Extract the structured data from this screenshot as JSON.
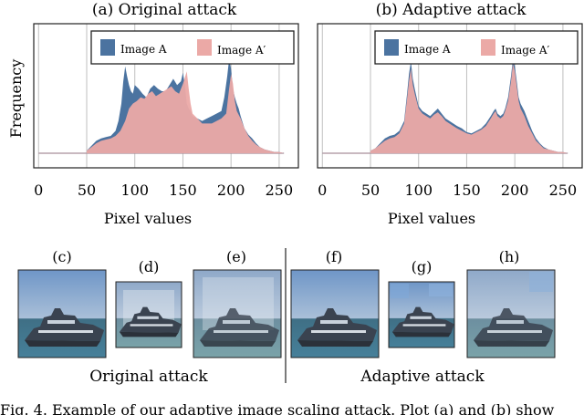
{
  "figure": {
    "caption_fragment": "Fig. 4.   Example of our adaptive image scaling attack. Plot (a) and (b) show",
    "ylabel": "Frequency",
    "xlabel": "Pixel values",
    "legend": {
      "image_a": "Image A",
      "image_a_prime": "Image A′"
    },
    "colors": {
      "image_a": "#4b73a0",
      "image_a_prime": "#eba9a6",
      "grid": "#bfbfbf"
    },
    "thumbnails": {
      "c": "(c)",
      "d": "(d)",
      "e": "(e)",
      "f": "(f)",
      "g": "(g)",
      "h": "(h)"
    },
    "group_labels": {
      "original": "Original attack",
      "adaptive": "Adaptive attack"
    }
  },
  "chart_data": [
    {
      "type": "area",
      "title": "(a) Original attack",
      "xlabel": "Pixel values",
      "ylabel": "Frequency",
      "xlim": [
        -5,
        270
      ],
      "xticks": [
        0,
        50,
        100,
        150,
        200,
        250
      ],
      "ylim": [
        0,
        1
      ],
      "grid": true,
      "legend_position": "top",
      "series": [
        {
          "name": "Image A",
          "x": [
            50,
            55,
            60,
            65,
            70,
            75,
            80,
            83,
            86,
            88,
            90,
            92,
            94,
            96,
            98,
            100,
            104,
            108,
            112,
            116,
            120,
            124,
            128,
            132,
            136,
            140,
            144,
            148,
            150,
            152,
            154,
            156,
            158,
            160,
            165,
            170,
            175,
            180,
            185,
            190,
            193,
            196,
            198,
            200,
            202,
            204,
            206,
            208,
            210,
            214,
            218,
            222,
            226,
            230,
            235,
            240,
            245,
            250,
            255
          ],
          "y": [
            0.02,
            0.06,
            0.1,
            0.12,
            0.13,
            0.14,
            0.18,
            0.26,
            0.4,
            0.58,
            0.7,
            0.62,
            0.55,
            0.5,
            0.48,
            0.55,
            0.52,
            0.48,
            0.45,
            0.52,
            0.55,
            0.52,
            0.5,
            0.5,
            0.55,
            0.6,
            0.55,
            0.58,
            0.65,
            0.55,
            0.4,
            0.36,
            0.34,
            0.3,
            0.28,
            0.26,
            0.28,
            0.3,
            0.32,
            0.34,
            0.45,
            0.62,
            0.76,
            0.68,
            0.52,
            0.45,
            0.4,
            0.36,
            0.3,
            0.2,
            0.15,
            0.12,
            0.08,
            0.05,
            0.03,
            0.02,
            0.01,
            0.01,
            0.0
          ]
        },
        {
          "name": "Image A′",
          "x": [
            50,
            55,
            60,
            65,
            70,
            75,
            80,
            85,
            90,
            94,
            98,
            102,
            106,
            110,
            114,
            118,
            122,
            126,
            130,
            134,
            138,
            142,
            146,
            150,
            154,
            156,
            158,
            160,
            165,
            170,
            175,
            180,
            185,
            190,
            195,
            198,
            200,
            202,
            204,
            206,
            210,
            214,
            218,
            222,
            226,
            230,
            235,
            240,
            245,
            250,
            255
          ],
          "y": [
            0.02,
            0.05,
            0.08,
            0.1,
            0.11,
            0.12,
            0.14,
            0.18,
            0.26,
            0.36,
            0.4,
            0.42,
            0.45,
            0.44,
            0.48,
            0.5,
            0.46,
            0.48,
            0.5,
            0.52,
            0.54,
            0.5,
            0.48,
            0.56,
            0.66,
            0.52,
            0.4,
            0.32,
            0.28,
            0.24,
            0.24,
            0.24,
            0.26,
            0.28,
            0.32,
            0.52,
            0.64,
            0.56,
            0.42,
            0.34,
            0.28,
            0.2,
            0.14,
            0.1,
            0.07,
            0.05,
            0.03,
            0.02,
            0.01,
            0.01,
            0.0
          ]
        }
      ]
    },
    {
      "type": "area",
      "title": "(b) Adaptive attack",
      "xlabel": "Pixel values",
      "ylabel": "",
      "xlim": [
        -5,
        270
      ],
      "xticks": [
        0,
        50,
        100,
        150,
        200,
        250
      ],
      "ylim": [
        0,
        1
      ],
      "grid": true,
      "legend_position": "top",
      "series": [
        {
          "name": "Image A",
          "x": [
            50,
            55,
            60,
            65,
            70,
            75,
            80,
            85,
            88,
            90,
            92,
            94,
            96,
            98,
            100,
            104,
            108,
            112,
            116,
            120,
            124,
            128,
            132,
            136,
            140,
            145,
            150,
            155,
            160,
            165,
            170,
            175,
            178,
            180,
            182,
            185,
            188,
            190,
            193,
            196,
            198,
            200,
            202,
            204,
            206,
            210,
            214,
            218,
            222,
            226,
            230,
            235,
            240,
            245,
            250,
            255
          ],
          "y": [
            0.02,
            0.04,
            0.08,
            0.12,
            0.14,
            0.15,
            0.18,
            0.26,
            0.48,
            0.64,
            0.74,
            0.6,
            0.52,
            0.45,
            0.38,
            0.34,
            0.32,
            0.3,
            0.33,
            0.36,
            0.32,
            0.28,
            0.26,
            0.24,
            0.22,
            0.2,
            0.17,
            0.16,
            0.18,
            0.2,
            0.24,
            0.3,
            0.34,
            0.36,
            0.32,
            0.3,
            0.32,
            0.36,
            0.45,
            0.62,
            0.76,
            0.7,
            0.58,
            0.45,
            0.4,
            0.34,
            0.26,
            0.18,
            0.12,
            0.08,
            0.05,
            0.03,
            0.02,
            0.01,
            0.01,
            0.0
          ]
        },
        {
          "name": "Image A′",
          "x": [
            50,
            55,
            60,
            65,
            70,
            75,
            80,
            85,
            88,
            90,
            92,
            94,
            96,
            98,
            100,
            104,
            108,
            112,
            116,
            120,
            124,
            128,
            132,
            136,
            140,
            145,
            150,
            155,
            160,
            165,
            170,
            175,
            178,
            180,
            182,
            185,
            188,
            190,
            193,
            196,
            198,
            200,
            202,
            204,
            206,
            210,
            214,
            218,
            222,
            226,
            230,
            235,
            240,
            245,
            250,
            255
          ],
          "y": [
            0.02,
            0.04,
            0.07,
            0.1,
            0.12,
            0.13,
            0.16,
            0.24,
            0.44,
            0.58,
            0.68,
            0.55,
            0.48,
            0.42,
            0.36,
            0.32,
            0.3,
            0.28,
            0.31,
            0.33,
            0.3,
            0.26,
            0.24,
            0.22,
            0.2,
            0.18,
            0.16,
            0.15,
            0.17,
            0.19,
            0.22,
            0.28,
            0.32,
            0.34,
            0.3,
            0.28,
            0.3,
            0.34,
            0.42,
            0.58,
            0.72,
            0.66,
            0.54,
            0.42,
            0.36,
            0.3,
            0.22,
            0.16,
            0.1,
            0.07,
            0.04,
            0.03,
            0.02,
            0.01,
            0.01,
            0.0
          ]
        }
      ]
    }
  ]
}
